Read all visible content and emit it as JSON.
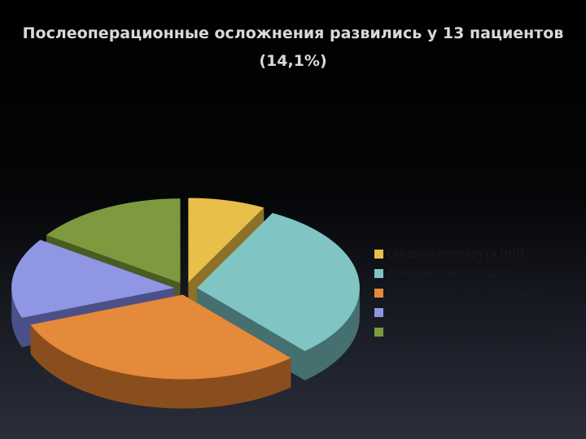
{
  "slide": {
    "title_line1": "Послеоперационные осложнения развились у 13 пациентов",
    "title_line2": "(14,1%)"
  },
  "chart_data": {
    "type": "pie",
    "style": "3d-exploded",
    "title": "",
    "legend_position": "right",
    "categories": [
      "синдром перекрута ННП",
      "геморрагический шок",
      "скопления в зоне операции",
      "плевральный выпот",
      "печеночная недостаточность"
    ],
    "values": [
      1,
      4,
      4,
      2,
      2
    ],
    "colors": [
      "#e8bf4a",
      "#80c4c4",
      "#e5893a",
      "#8f96e3",
      "#7e9a3e"
    ],
    "side_colors": [
      "#8c7126",
      "#466f70",
      "#8a4e1e",
      "#4b5088",
      "#4a5c22"
    ]
  }
}
